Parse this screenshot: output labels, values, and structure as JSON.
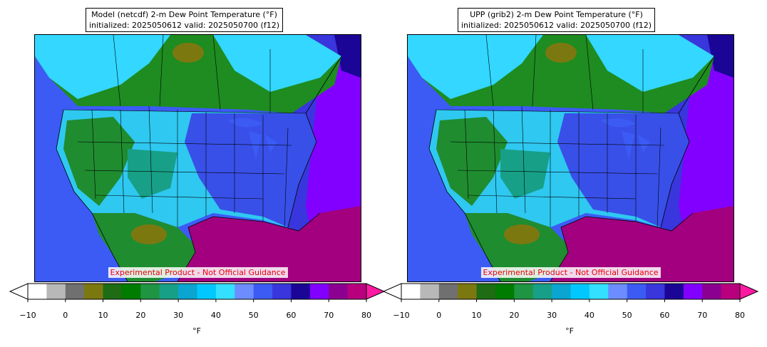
{
  "panels": [
    {
      "title_line1": "Model (netcdf) 2-m Dew Point Temperature (°F)",
      "title_line2": "initialized: 2025050612 valid: 2025050700 (f12)",
      "disclaimer": "Experimental Product - Not Official Guidance"
    },
    {
      "title_line1": "UPP (grib2) 2-m Dew Point Temperature (°F)",
      "title_line2": "initialized: 2025050612 valid: 2025050700 (f12)",
      "disclaimer": "Experimental Product - Not Official Guidance"
    }
  ],
  "colorbar": {
    "unit": "°F",
    "ticks": [
      "−10",
      "0",
      "10",
      "20",
      "30",
      "40",
      "50",
      "60",
      "70",
      "80"
    ],
    "tick_values": [
      -10,
      0,
      10,
      20,
      30,
      40,
      50,
      60,
      70,
      80
    ],
    "bounds": [
      -10,
      -5,
      0,
      5,
      10,
      15,
      20,
      25,
      30,
      35,
      40,
      45,
      50,
      55,
      60,
      65,
      70,
      75,
      80
    ],
    "colors": [
      "#ffffff",
      "#b8b8b8",
      "#707070",
      "#7c7810",
      "#1e6c14",
      "#007c00",
      "#1f9442",
      "#17a087",
      "#0aa5d0",
      "#00c8ff",
      "#33e0ff",
      "#6d8cff",
      "#3c5bf5",
      "#3836dc",
      "#1a0596",
      "#8200ff",
      "#8c0091",
      "#b8007f"
    ],
    "under_color": "#ffffff",
    "over_color": "#ff1aa3",
    "extend": "both"
  },
  "map_colors": {
    "ocean_gulf": "#a2007e",
    "ocean_atlantic_far": "#8200ff",
    "ocean_atlantic_mid": "#3836dc",
    "ocean_pacific": "#3c5bf5",
    "canada_green": "#1e8c20",
    "canada_cyan": "#33d7ff",
    "land_cyan": "#2fc8f0",
    "land_blue": "#3850e8",
    "west_green": "#1f8c30",
    "boundary": "#000000"
  }
}
